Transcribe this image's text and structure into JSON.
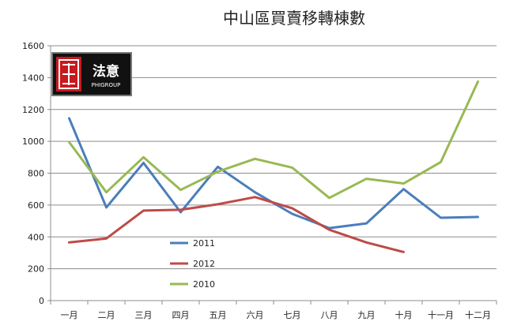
{
  "chart_data": {
    "type": "line",
    "title": "中山區買賣移轉棟數",
    "categories": [
      "一月",
      "二月",
      "三月",
      "四月",
      "五月",
      "六月",
      "七月",
      "八月",
      "九月",
      "十月",
      "十一月",
      "十二月"
    ],
    "ylim": [
      0,
      1600
    ],
    "yticks": [
      0,
      200,
      400,
      600,
      800,
      1000,
      1200,
      1400,
      1600
    ],
    "ytick_labels": [
      "0",
      "200",
      "400",
      "600",
      "800",
      "1000",
      "1200",
      "1400",
      "1600"
    ],
    "grid": true,
    "legend_position": "bottom-left-inside",
    "series": [
      {
        "name": "2011",
        "color": "#4a7ebb",
        "values": [
          1145,
          585,
          865,
          555,
          840,
          680,
          545,
          455,
          485,
          700,
          520,
          525
        ]
      },
      {
        "name": "2012",
        "color": "#be4b48",
        "values": [
          365,
          390,
          565,
          570,
          605,
          650,
          580,
          445,
          365,
          305,
          null,
          null
        ]
      },
      {
        "name": "2010",
        "color": "#98b954",
        "values": [
          995,
          680,
          900,
          695,
          810,
          890,
          835,
          645,
          765,
          735,
          870,
          1375
        ]
      }
    ]
  },
  "logo": {
    "main": "法意",
    "sub": "PHIGROUP"
  }
}
